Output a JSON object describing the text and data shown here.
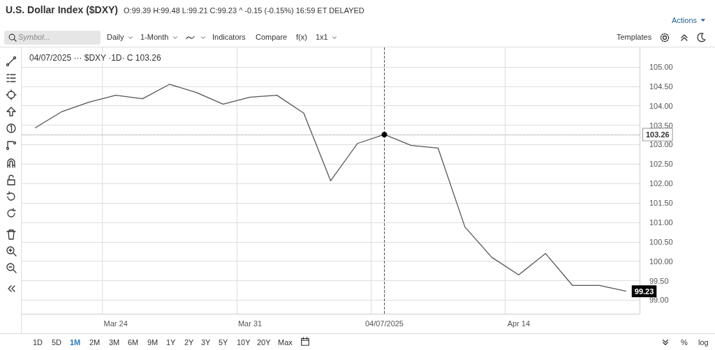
{
  "chart_data": {
    "type": "line",
    "title": "U.S. Dollar Index ($DXY)",
    "subtitle": "O:99.39 H:99.48 L:99.21 C:99.23 ^ -0.15 (-0.15%) 16:59 ET DELAYED",
    "categories": [
      null,
      null,
      null,
      "Mar 24",
      null,
      null,
      null,
      null,
      "Mar 31",
      null,
      null,
      null,
      null,
      "04/07/2025",
      null,
      null,
      null,
      null,
      "Apr 14",
      null,
      null,
      null,
      null
    ],
    "series": [
      {
        "color": "#555555",
        "values": [
          103.43,
          103.85,
          104.09,
          104.27,
          104.18,
          104.55,
          104.34,
          104.04,
          104.22,
          104.27,
          103.81,
          102.07,
          103.03,
          103.26,
          102.98,
          102.91,
          100.88,
          100.1,
          99.65,
          100.2,
          99.38,
          99.38,
          99.23
        ],
        "value_labels": [
          null,
          null,
          null,
          null,
          null,
          null,
          null,
          null,
          null,
          null,
          null,
          null,
          null,
          null,
          null,
          null,
          null,
          null,
          null,
          null,
          null,
          null,
          "99.23"
        ]
      }
    ],
    "ylim": [
      98.65,
      105.5
    ],
    "yticks": [
      {
        "value": 99,
        "label": "99.00"
      },
      {
        "value": 99.5,
        "label": "99.50"
      },
      {
        "value": 100,
        "label": "100.00"
      },
      {
        "value": 100.5,
        "label": "100.50"
      },
      {
        "value": 101,
        "label": "101.00"
      },
      {
        "value": 101.5,
        "label": "101.50"
      },
      {
        "value": 102,
        "label": "102.00"
      },
      {
        "value": 102.5,
        "label": "102.50"
      },
      {
        "value": 103,
        "label": "103.00"
      },
      {
        "value": 103.5,
        "label": "103.50"
      },
      {
        "value": 104,
        "label": "104.00"
      },
      {
        "value": 104.5,
        "label": "104.50"
      },
      {
        "value": 105,
        "label": "105.00"
      }
    ],
    "grid": true,
    "marker": "none",
    "line_style": "solid",
    "ref_lines": [
      {
        "axis": "x",
        "value": "04/07/2025",
        "line_style": "dashed",
        "color": "#555555"
      },
      {
        "axis": "y",
        "value": 103.26,
        "label": "103.26",
        "line_style": "dotted",
        "color": "#888888"
      }
    ],
    "annotations": [
      "04/07/2025 ··· $DXY ·1D· C 103.26",
      "Actions",
      "Symbol...",
      "Daily",
      "1-Month",
      "Indicators",
      "Compare",
      "f(x)",
      "1x1",
      "Templates",
      "1D",
      "5D",
      "1M",
      "2M",
      "3M",
      "6M",
      "9M",
      "1Y",
      "2Y",
      "3Y",
      "5Y",
      "10Y",
      "20Y",
      "Max",
      "%",
      "log"
    ]
  }
}
